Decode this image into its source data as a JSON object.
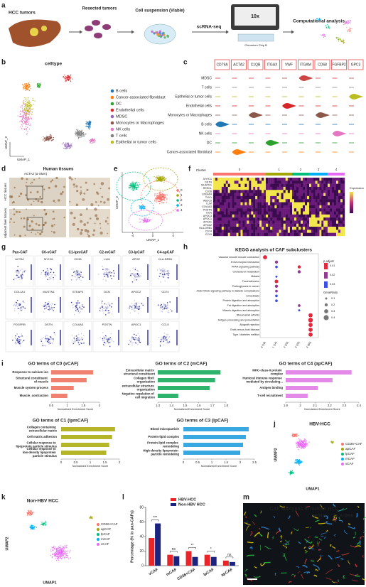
{
  "panel_labels": [
    "a",
    "b",
    "c",
    "d",
    "e",
    "f",
    "g",
    "h",
    "i",
    "j",
    "k",
    "l",
    "m"
  ],
  "workflow": {
    "steps": [
      "HCC tumors",
      "Resected tumors",
      "Cell suspension (Viable)",
      "scRNA-seq",
      "Computational analysis"
    ],
    "device": "10x",
    "chip": "Chromium Chip B"
  },
  "celltype_umap": {
    "title": "celltype",
    "x_label": "UMAP_1",
    "y_label": "UMAP_3",
    "legend": [
      {
        "name": "B cells",
        "color": "#1f77b4"
      },
      {
        "name": "Cancer-associated fibroblast",
        "color": "#ff7f0e"
      },
      {
        "name": "DC",
        "color": "#2ca02c"
      },
      {
        "name": "Endothelial cells",
        "color": "#d62728"
      },
      {
        "name": "MDSC",
        "color": "#9467bd"
      },
      {
        "name": "Monocytes or Macrophages",
        "color": "#8c564b"
      },
      {
        "name": "NK cells",
        "color": "#e377c2"
      },
      {
        "name": "T cells",
        "color": "#7f7f7f"
      },
      {
        "name": "Epithelial or tumor cells",
        "color": "#bcbd22"
      }
    ]
  },
  "violin": {
    "genes": [
      "CD79A",
      "ACTA2",
      "C1QB",
      "ITGAX",
      "VWF",
      "ITGAM",
      "CD68",
      "FGFBP2",
      "GPC3"
    ],
    "celltypes": [
      "MDSC",
      "T cells",
      "Epithelial or tumor cells",
      "Endothelial cells",
      "Monocytes or Macrophages",
      "B cells",
      "NK cells",
      "DC",
      "Cancer-associated fibroblast"
    ]
  },
  "ihc": {
    "title": "Human tissues",
    "stain": "ACTA2 (α-SMA)",
    "rows": [
      "HCC tissues",
      "Adjacent liver tissues"
    ]
  },
  "cluster_umap": {
    "x_label": "UMAP_1",
    "y_label": "UMAP_2",
    "xlim": [
      -6,
      6
    ],
    "xticks": [
      -4,
      0,
      4
    ],
    "clusters": [
      {
        "name": "0",
        "color": "#f8766d"
      },
      {
        "name": "1",
        "color": "#a3a500"
      },
      {
        "name": "2",
        "color": "#00bf7d"
      },
      {
        "name": "3",
        "color": "#00b0f6"
      },
      {
        "name": "4",
        "color": "#e76bf3"
      }
    ]
  },
  "heatmap": {
    "title": "Cluster",
    "clusters": [
      "0",
      "1",
      "2",
      "3",
      "4"
    ],
    "legend": "Expression",
    "groups": [
      {
        "color": "#e8604c",
        "genes": [
          "MYH11",
          "DSTN",
          "MUSTN1",
          "RERGL"
        ]
      },
      {
        "color": "#a3a500",
        "genes": [
          "CD36",
          "STEAP4",
          "THY1",
          "ABCC9"
        ]
      },
      {
        "color": "#00a86b",
        "genes": [
          "LUM",
          "COL6A3",
          "POSTN",
          "DCN"
        ]
      },
      {
        "color": "#1a8fd6",
        "genes": [
          "APOC3",
          "APOC1",
          "APOA1",
          "APOA2"
        ]
      },
      {
        "color": "#d35ad8",
        "genes": [
          "HLA-DRB1",
          "CD74",
          "CCL5"
        ]
      }
    ]
  },
  "feature_plots": {
    "columns": [
      "Pan-CAF",
      "C0-vCAF",
      "C1-lpmCAF",
      "C2-mCAF",
      "C3-lpCAF",
      "C4-apCAF"
    ],
    "genes": [
      [
        "ACTA2",
        "MYH11",
        "CD36",
        "LUM",
        "APOE",
        "HLA-DRB1"
      ],
      [
        "COL1A1",
        "MUSTN1",
        "STEAP4",
        "DCN",
        "APOC2",
        "CD74"
      ],
      [
        "PDGFRB",
        "DSTN",
        "COL6A3",
        "POSTN",
        "APOC1",
        "CCL5"
      ]
    ]
  },
  "chart_data": [
    {
      "type": "dot",
      "title": "KEGG analysis of CAF subclusters",
      "categories": [
        "Vascular smooth muscle contraction",
        "ECM-receptor interaction",
        "PPAR signaling pathway",
        "Cholesterol metabolism",
        "Malaria",
        "Focal adhesion",
        "Proteoglycans in cancer",
        "AGE-RAGE signaling pathway in diabetic complications",
        "Amoebiasis",
        "Protein digestion and absorption",
        "Fat digestion and absorption",
        "Vitamin digestion and absorption",
        "Rheumatoid arthritis",
        "Antigen processing and presentation",
        "Allograft rejection",
        "Graft-versus-host disease",
        "Type I diabetes mellitus"
      ],
      "clusters": [
        "0 (16)",
        "1 (14)",
        "2 (25)",
        "3 (22)",
        "4 (60)"
      ],
      "dots": [
        {
          "cluster": 0,
          "pathway": 0,
          "gene_ratio": 0.3,
          "p_adjust": 0.01
        },
        {
          "cluster": 1,
          "pathway": 1,
          "gene_ratio": 0.2,
          "p_adjust": 0.02
        },
        {
          "cluster": 1,
          "pathway": 2,
          "gene_ratio": 0.15,
          "p_adjust": 0.03
        },
        {
          "cluster": 3,
          "pathway": 2,
          "gene_ratio": 0.2,
          "p_adjust": 0.01
        },
        {
          "cluster": 3,
          "pathway": 3,
          "gene_ratio": 0.2,
          "p_adjust": 0.02
        },
        {
          "cluster": 1,
          "pathway": 4,
          "gene_ratio": 0.1,
          "p_adjust": 0.03
        },
        {
          "cluster": 1,
          "pathway": 5,
          "gene_ratio": 0.25,
          "p_adjust": 0.01
        },
        {
          "cluster": 1,
          "pathway": 6,
          "gene_ratio": 0.2,
          "p_adjust": 0.02
        },
        {
          "cluster": 1,
          "pathway": 7,
          "gene_ratio": 0.15,
          "p_adjust": 0.02
        },
        {
          "cluster": 1,
          "pathway": 8,
          "gene_ratio": 0.15,
          "p_adjust": 0.03
        },
        {
          "cluster": 1,
          "pathway": 9,
          "gene_ratio": 0.15,
          "p_adjust": 0.03
        },
        {
          "cluster": 3,
          "pathway": 10,
          "gene_ratio": 0.15,
          "p_adjust": 0.02
        },
        {
          "cluster": 3,
          "pathway": 11,
          "gene_ratio": 0.1,
          "p_adjust": 0.03
        },
        {
          "cluster": 4,
          "pathway": 12,
          "gene_ratio": 0.3,
          "p_adjust": 0.01
        },
        {
          "cluster": 4,
          "pathway": 13,
          "gene_ratio": 0.35,
          "p_adjust": 0.01
        },
        {
          "cluster": 4,
          "pathway": 14,
          "gene_ratio": 0.3,
          "p_adjust": 0.01
        },
        {
          "cluster": 4,
          "pathway": 15,
          "gene_ratio": 0.3,
          "p_adjust": 0.01
        },
        {
          "cluster": 4,
          "pathway": 16,
          "gene_ratio": 0.3,
          "p_adjust": 0.01
        }
      ],
      "color_title": "p.adjust",
      "color_ticks": [
        0.01,
        0.02,
        0.03
      ],
      "size_title": "GeneRatio",
      "size_ticks": [
        0.1,
        0.2,
        0.3,
        0.4
      ]
    },
    {
      "type": "hbar",
      "title": "GO terms of C0 (vCAF)",
      "color": "#f08070",
      "x_label": "Normalized Enrichment Score",
      "categories": [
        "Response to calcium ion",
        "Structural constituent of muscle",
        "Muscle system process",
        "Muscle_contraction"
      ],
      "values": [
        1.8,
        1.6,
        1.2,
        1.0
      ],
      "xlim": [
        0.5,
        2
      ],
      "xticks": [
        0.5,
        1,
        1.5,
        2
      ]
    },
    {
      "type": "hbar",
      "title": "GO terms of C2 (mCAF)",
      "color": "#2db36b",
      "x_label": "Normalized Enrichment Score",
      "categories": [
        "Extracellular matrix structural constituent",
        "Collagen fibril organization",
        "extracellular structure organization",
        "Negative regulation of cell migration"
      ],
      "values": [
        1.76,
        1.72,
        1.68,
        1.45
      ],
      "xlim": [
        1.3,
        1.8
      ],
      "xticks": [
        1.3,
        1.4,
        1.5,
        1.6,
        1.7,
        1.8
      ]
    },
    {
      "type": "hbar",
      "title": "GO terms of C4 (apCAF)",
      "color": "#e38ae8",
      "x_label": "Normalized Enrichment Score",
      "categories": [
        "MHC-class-II protein complex",
        "Humoral immune response mediated by circulating...",
        "Antigen binding",
        "T-cell recruitment"
      ],
      "values": [
        2.35,
        2.22,
        2.12,
        2.05
      ],
      "xlim": [
        1.9,
        2.4
      ],
      "xticks": [
        1.9,
        2,
        2.1,
        2.2,
        2.3,
        2.4
      ]
    },
    {
      "type": "hbar",
      "title": "GO terms of C1 (lpmCAF)",
      "color": "#b5b52a",
      "x_label": "Normalized Enrichment Score",
      "categories": [
        "Collagen containing extracellular matrix",
        "Cell matrix adhesion",
        "Cellular response to lipoprotein particle stimulus",
        "Cellular response to low-density lipoprotein particle stimulus"
      ],
      "values": [
        1.85,
        1.75,
        1.65,
        1.55
      ],
      "xlim": [
        0,
        2
      ],
      "xticks": [
        0,
        0.5,
        1,
        1.5,
        2
      ]
    },
    {
      "type": "hbar",
      "title": "GO terms of C3 (lpCAF)",
      "color": "#3aa8e0",
      "x_label": "Normalized Enrichment Score",
      "categories": [
        "Blood microparticle",
        "Protein-lipid complex",
        "Protein-lipid complex remodeling",
        "High-density lipoprotein particle remodeling"
      ],
      "values": [
        2.3,
        2.2,
        2.1,
        2.0
      ],
      "xlim": [
        0,
        2.5
      ],
      "xticks": [
        0,
        0.5,
        1,
        1.5,
        2,
        2.5
      ]
    },
    {
      "type": "bar",
      "y_label": "Percentage (% in pan-CAFs)",
      "categories": [
        "vCAF",
        "mCAF",
        "CD36+CAF",
        "lpCAF",
        "apCAF"
      ],
      "series": [
        {
          "name": "HBV-HCC",
          "color": "#e8262a",
          "values": [
            38,
            15,
            20,
            15,
            7
          ]
        },
        {
          "name": "Non-HBV HCC",
          "color": "#1a237e",
          "values": [
            58,
            13,
            12,
            12,
            5
          ]
        }
      ],
      "annotations": [
        "***",
        "ns",
        "**",
        "*",
        "ns"
      ],
      "ylim": [
        0,
        80
      ],
      "yticks": [
        0,
        20,
        40,
        60,
        80
      ]
    }
  ],
  "hbv_umap": {
    "title": "HBV-HCC",
    "x_label": "UMAP1",
    "y_label": "UMAP2",
    "legend": [
      {
        "name": "CD36+CAF",
        "color": "#f8766d"
      },
      {
        "name": "apCAF",
        "color": "#a3a500"
      },
      {
        "name": "lpCAF",
        "color": "#00bf7d"
      },
      {
        "name": "mCAF",
        "color": "#00b0f6"
      },
      {
        "name": "vCAF",
        "color": "#e76bf3"
      }
    ]
  },
  "nonhbv_umap": {
    "title": "Non-HBV HCC",
    "x_label": "UMAP1",
    "y_label": "UMAP2",
    "legend": [
      {
        "name": "CD36+CAF",
        "color": "#f8766d"
      },
      {
        "name": "apCAF",
        "color": "#a3a500"
      },
      {
        "name": "lpCAF",
        "color": "#00bf7d"
      },
      {
        "name": "mCAF",
        "color": "#00b0f6"
      },
      {
        "name": "vCAF",
        "color": "#e76bf3"
      }
    ]
  },
  "if_image": {
    "title": "CAF subtypes in human HCC",
    "channels": [
      {
        "name": "MYH11",
        "color": "#ffe600"
      },
      {
        "name": "HLA-DRA",
        "color": "#5fd3ff"
      }
    ]
  }
}
